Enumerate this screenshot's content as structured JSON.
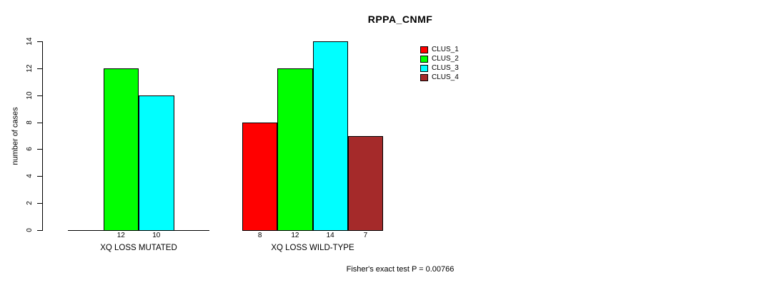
{
  "title": "RPPA_CNMF",
  "footnote": "Fisher's exact test P = 0.00766",
  "chart_data": {
    "type": "bar",
    "title": "RPPA_CNMF",
    "xlabel": "",
    "ylabel": "number of cases",
    "ylim": [
      0,
      14
    ],
    "yticks": [
      0,
      2,
      4,
      6,
      8,
      10,
      12,
      14
    ],
    "grid": false,
    "legend_position": "top-right",
    "categories": [
      "XQ LOSS MUTATED",
      "XQ LOSS WILD-TYPE"
    ],
    "series": [
      {
        "name": "CLUS_1",
        "color": "#FF0000",
        "values": [
          0,
          8
        ]
      },
      {
        "name": "CLUS_2",
        "color": "#00FF00",
        "values": [
          12,
          12
        ]
      },
      {
        "name": "CLUS_3",
        "color": "#00FFFF",
        "values": [
          10,
          14
        ]
      },
      {
        "name": "CLUS_4",
        "color": "#A52A2A",
        "values": [
          0,
          7
        ]
      }
    ],
    "bar_value_labels": {
      "group_0": [
        "12",
        "10"
      ],
      "group_1": [
        "8",
        "12",
        "14",
        "7"
      ]
    },
    "annotation": "Fisher's exact test P = 0.00766",
    "axis_color": "#000000",
    "bar_border_color": "#000000"
  }
}
